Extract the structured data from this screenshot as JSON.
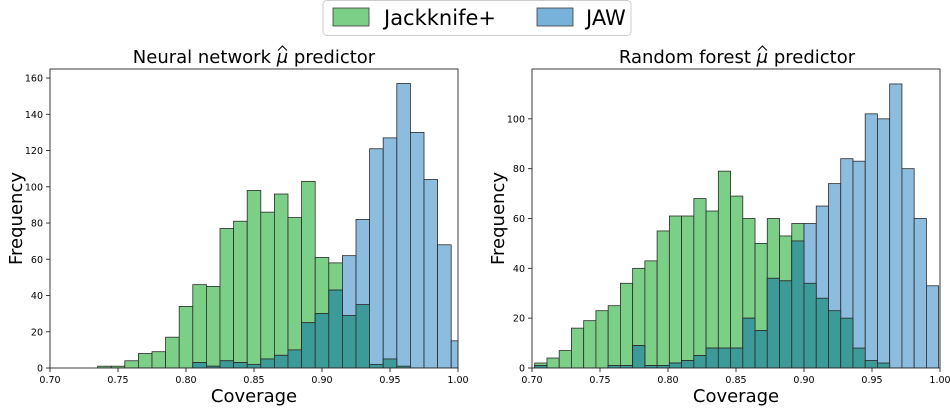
{
  "legend": {
    "placement": "top-center",
    "entries": [
      {
        "label": "Jackknife+",
        "color": "#7ccf86"
      },
      {
        "label": "JAW",
        "color": "#78b1d9"
      }
    ]
  },
  "colors": {
    "overlap": "#3c9a98",
    "edge": "#2b2b2b"
  },
  "chart_data": [
    {
      "type": "bar",
      "title": "Neural network μ̂ predictor",
      "title_prefix": "Neural network ",
      "title_symbol": "μ",
      "title_suffix": " predictor",
      "xlabel": "Coverage",
      "ylabel": "Frequency",
      "xlim": [
        0.7,
        1.0
      ],
      "ylim": [
        0,
        165
      ],
      "xticks": [
        "0.70",
        "0.75",
        "0.80",
        "0.85",
        "0.90",
        "0.95",
        "1.00"
      ],
      "yticks": [
        "0",
        "20",
        "40",
        "60",
        "80",
        "100",
        "120",
        "140",
        "160"
      ],
      "grid": false,
      "series": [
        {
          "name": "Jackknife+",
          "bins": [
            {
              "x0": 0.735,
              "x1": 0.745,
              "y": 1
            },
            {
              "x0": 0.745,
              "x1": 0.755,
              "y": 1
            },
            {
              "x0": 0.755,
              "x1": 0.765,
              "y": 4
            },
            {
              "x0": 0.765,
              "x1": 0.775,
              "y": 8
            },
            {
              "x0": 0.775,
              "x1": 0.785,
              "y": 9
            },
            {
              "x0": 0.785,
              "x1": 0.795,
              "y": 17
            },
            {
              "x0": 0.795,
              "x1": 0.805,
              "y": 34
            },
            {
              "x0": 0.805,
              "x1": 0.815,
              "y": 46
            },
            {
              "x0": 0.815,
              "x1": 0.825,
              "y": 45
            },
            {
              "x0": 0.825,
              "x1": 0.835,
              "y": 77
            },
            {
              "x0": 0.835,
              "x1": 0.845,
              "y": 81
            },
            {
              "x0": 0.845,
              "x1": 0.855,
              "y": 98
            },
            {
              "x0": 0.855,
              "x1": 0.865,
              "y": 86
            },
            {
              "x0": 0.865,
              "x1": 0.875,
              "y": 96
            },
            {
              "x0": 0.875,
              "x1": 0.885,
              "y": 83
            },
            {
              "x0": 0.885,
              "x1": 0.895,
              "y": 103
            },
            {
              "x0": 0.895,
              "x1": 0.905,
              "y": 61
            },
            {
              "x0": 0.905,
              "x1": 0.915,
              "y": 58
            },
            {
              "x0": 0.915,
              "x1": 0.925,
              "y": 29
            },
            {
              "x0": 0.925,
              "x1": 0.935,
              "y": 35
            },
            {
              "x0": 0.935,
              "x1": 0.945,
              "y": 2
            },
            {
              "x0": 0.945,
              "x1": 0.955,
              "y": 5
            },
            {
              "x0": 0.955,
              "x1": 0.965,
              "y": 1
            }
          ]
        },
        {
          "name": "JAW",
          "bins": [
            {
              "x0": 0.805,
              "x1": 0.815,
              "y": 3
            },
            {
              "x0": 0.815,
              "x1": 0.825,
              "y": 1
            },
            {
              "x0": 0.825,
              "x1": 0.835,
              "y": 4
            },
            {
              "x0": 0.835,
              "x1": 0.845,
              "y": 3
            },
            {
              "x0": 0.845,
              "x1": 0.855,
              "y": 2
            },
            {
              "x0": 0.855,
              "x1": 0.865,
              "y": 5
            },
            {
              "x0": 0.865,
              "x1": 0.875,
              "y": 7
            },
            {
              "x0": 0.875,
              "x1": 0.885,
              "y": 10
            },
            {
              "x0": 0.885,
              "x1": 0.895,
              "y": 25
            },
            {
              "x0": 0.895,
              "x1": 0.905,
              "y": 30
            },
            {
              "x0": 0.905,
              "x1": 0.915,
              "y": 43
            },
            {
              "x0": 0.915,
              "x1": 0.925,
              "y": 62
            },
            {
              "x0": 0.925,
              "x1": 0.935,
              "y": 82
            },
            {
              "x0": 0.935,
              "x1": 0.945,
              "y": 121
            },
            {
              "x0": 0.945,
              "x1": 0.955,
              "y": 127
            },
            {
              "x0": 0.955,
              "x1": 0.965,
              "y": 157
            },
            {
              "x0": 0.965,
              "x1": 0.975,
              "y": 130
            },
            {
              "x0": 0.975,
              "x1": 0.985,
              "y": 104
            },
            {
              "x0": 0.985,
              "x1": 0.995,
              "y": 68
            },
            {
              "x0": 0.995,
              "x1": 1.005,
              "y": 15
            }
          ]
        }
      ]
    },
    {
      "type": "bar",
      "title": "Random forest μ̂ predictor",
      "title_prefix": "Random forest ",
      "title_symbol": "μ",
      "title_suffix": " predictor",
      "xlabel": "Coverage",
      "ylabel": "Frequency",
      "xlim": [
        0.7,
        1.0
      ],
      "ylim": [
        0,
        120
      ],
      "xticks": [
        "0.70",
        "0.75",
        "0.80",
        "0.85",
        "0.90",
        "0.95",
        "1.00"
      ],
      "yticks": [
        "0",
        "20",
        "40",
        "60",
        "80",
        "100"
      ],
      "grid": false,
      "series": [
        {
          "name": "Jackknife+",
          "bins": [
            {
              "x0": 0.702,
              "x1": 0.711,
              "y": 2
            },
            {
              "x0": 0.711,
              "x1": 0.72,
              "y": 4
            },
            {
              "x0": 0.72,
              "x1": 0.729,
              "y": 7
            },
            {
              "x0": 0.729,
              "x1": 0.738,
              "y": 16
            },
            {
              "x0": 0.738,
              "x1": 0.747,
              "y": 19
            },
            {
              "x0": 0.747,
              "x1": 0.756,
              "y": 23
            },
            {
              "x0": 0.756,
              "x1": 0.765,
              "y": 25
            },
            {
              "x0": 0.765,
              "x1": 0.774,
              "y": 34
            },
            {
              "x0": 0.774,
              "x1": 0.783,
              "y": 40
            },
            {
              "x0": 0.783,
              "x1": 0.792,
              "y": 43
            },
            {
              "x0": 0.792,
              "x1": 0.801,
              "y": 55
            },
            {
              "x0": 0.801,
              "x1": 0.81,
              "y": 61
            },
            {
              "x0": 0.81,
              "x1": 0.819,
              "y": 61
            },
            {
              "x0": 0.819,
              "x1": 0.828,
              "y": 68
            },
            {
              "x0": 0.828,
              "x1": 0.837,
              "y": 63
            },
            {
              "x0": 0.837,
              "x1": 0.846,
              "y": 79
            },
            {
              "x0": 0.846,
              "x1": 0.855,
              "y": 69
            },
            {
              "x0": 0.855,
              "x1": 0.864,
              "y": 60
            },
            {
              "x0": 0.864,
              "x1": 0.873,
              "y": 50
            },
            {
              "x0": 0.873,
              "x1": 0.882,
              "y": 60
            },
            {
              "x0": 0.882,
              "x1": 0.891,
              "y": 53
            },
            {
              "x0": 0.891,
              "x1": 0.9,
              "y": 58
            },
            {
              "x0": 0.9,
              "x1": 0.909,
              "y": 34
            },
            {
              "x0": 0.909,
              "x1": 0.918,
              "y": 28
            },
            {
              "x0": 0.918,
              "x1": 0.927,
              "y": 23
            },
            {
              "x0": 0.927,
              "x1": 0.936,
              "y": 20
            },
            {
              "x0": 0.936,
              "x1": 0.945,
              "y": 8
            },
            {
              "x0": 0.945,
              "x1": 0.954,
              "y": 3
            },
            {
              "x0": 0.954,
              "x1": 0.963,
              "y": 2
            }
          ]
        },
        {
          "name": "JAW",
          "bins": [
            {
              "x0": 0.702,
              "x1": 0.711,
              "y": 1
            },
            {
              "x0": 0.756,
              "x1": 0.765,
              "y": 1
            },
            {
              "x0": 0.765,
              "x1": 0.774,
              "y": 1
            },
            {
              "x0": 0.774,
              "x1": 0.783,
              "y": 9
            },
            {
              "x0": 0.783,
              "x1": 0.792,
              "y": 1
            },
            {
              "x0": 0.792,
              "x1": 0.801,
              "y": 1
            },
            {
              "x0": 0.801,
              "x1": 0.81,
              "y": 2
            },
            {
              "x0": 0.81,
              "x1": 0.819,
              "y": 3
            },
            {
              "x0": 0.819,
              "x1": 0.828,
              "y": 5
            },
            {
              "x0": 0.828,
              "x1": 0.837,
              "y": 8
            },
            {
              "x0": 0.837,
              "x1": 0.846,
              "y": 8
            },
            {
              "x0": 0.846,
              "x1": 0.855,
              "y": 8
            },
            {
              "x0": 0.855,
              "x1": 0.864,
              "y": 20
            },
            {
              "x0": 0.864,
              "x1": 0.873,
              "y": 15
            },
            {
              "x0": 0.873,
              "x1": 0.882,
              "y": 36
            },
            {
              "x0": 0.882,
              "x1": 0.891,
              "y": 35
            },
            {
              "x0": 0.891,
              "x1": 0.9,
              "y": 51
            },
            {
              "x0": 0.9,
              "x1": 0.909,
              "y": 58
            },
            {
              "x0": 0.909,
              "x1": 0.918,
              "y": 65
            },
            {
              "x0": 0.918,
              "x1": 0.927,
              "y": 74
            },
            {
              "x0": 0.927,
              "x1": 0.936,
              "y": 84
            },
            {
              "x0": 0.936,
              "x1": 0.945,
              "y": 83
            },
            {
              "x0": 0.945,
              "x1": 0.954,
              "y": 102
            },
            {
              "x0": 0.954,
              "x1": 0.963,
              "y": 100
            },
            {
              "x0": 0.963,
              "x1": 0.972,
              "y": 114
            },
            {
              "x0": 0.972,
              "x1": 0.981,
              "y": 80
            },
            {
              "x0": 0.981,
              "x1": 0.99,
              "y": 60
            },
            {
              "x0": 0.99,
              "x1": 0.999,
              "y": 33
            }
          ]
        }
      ]
    }
  ]
}
